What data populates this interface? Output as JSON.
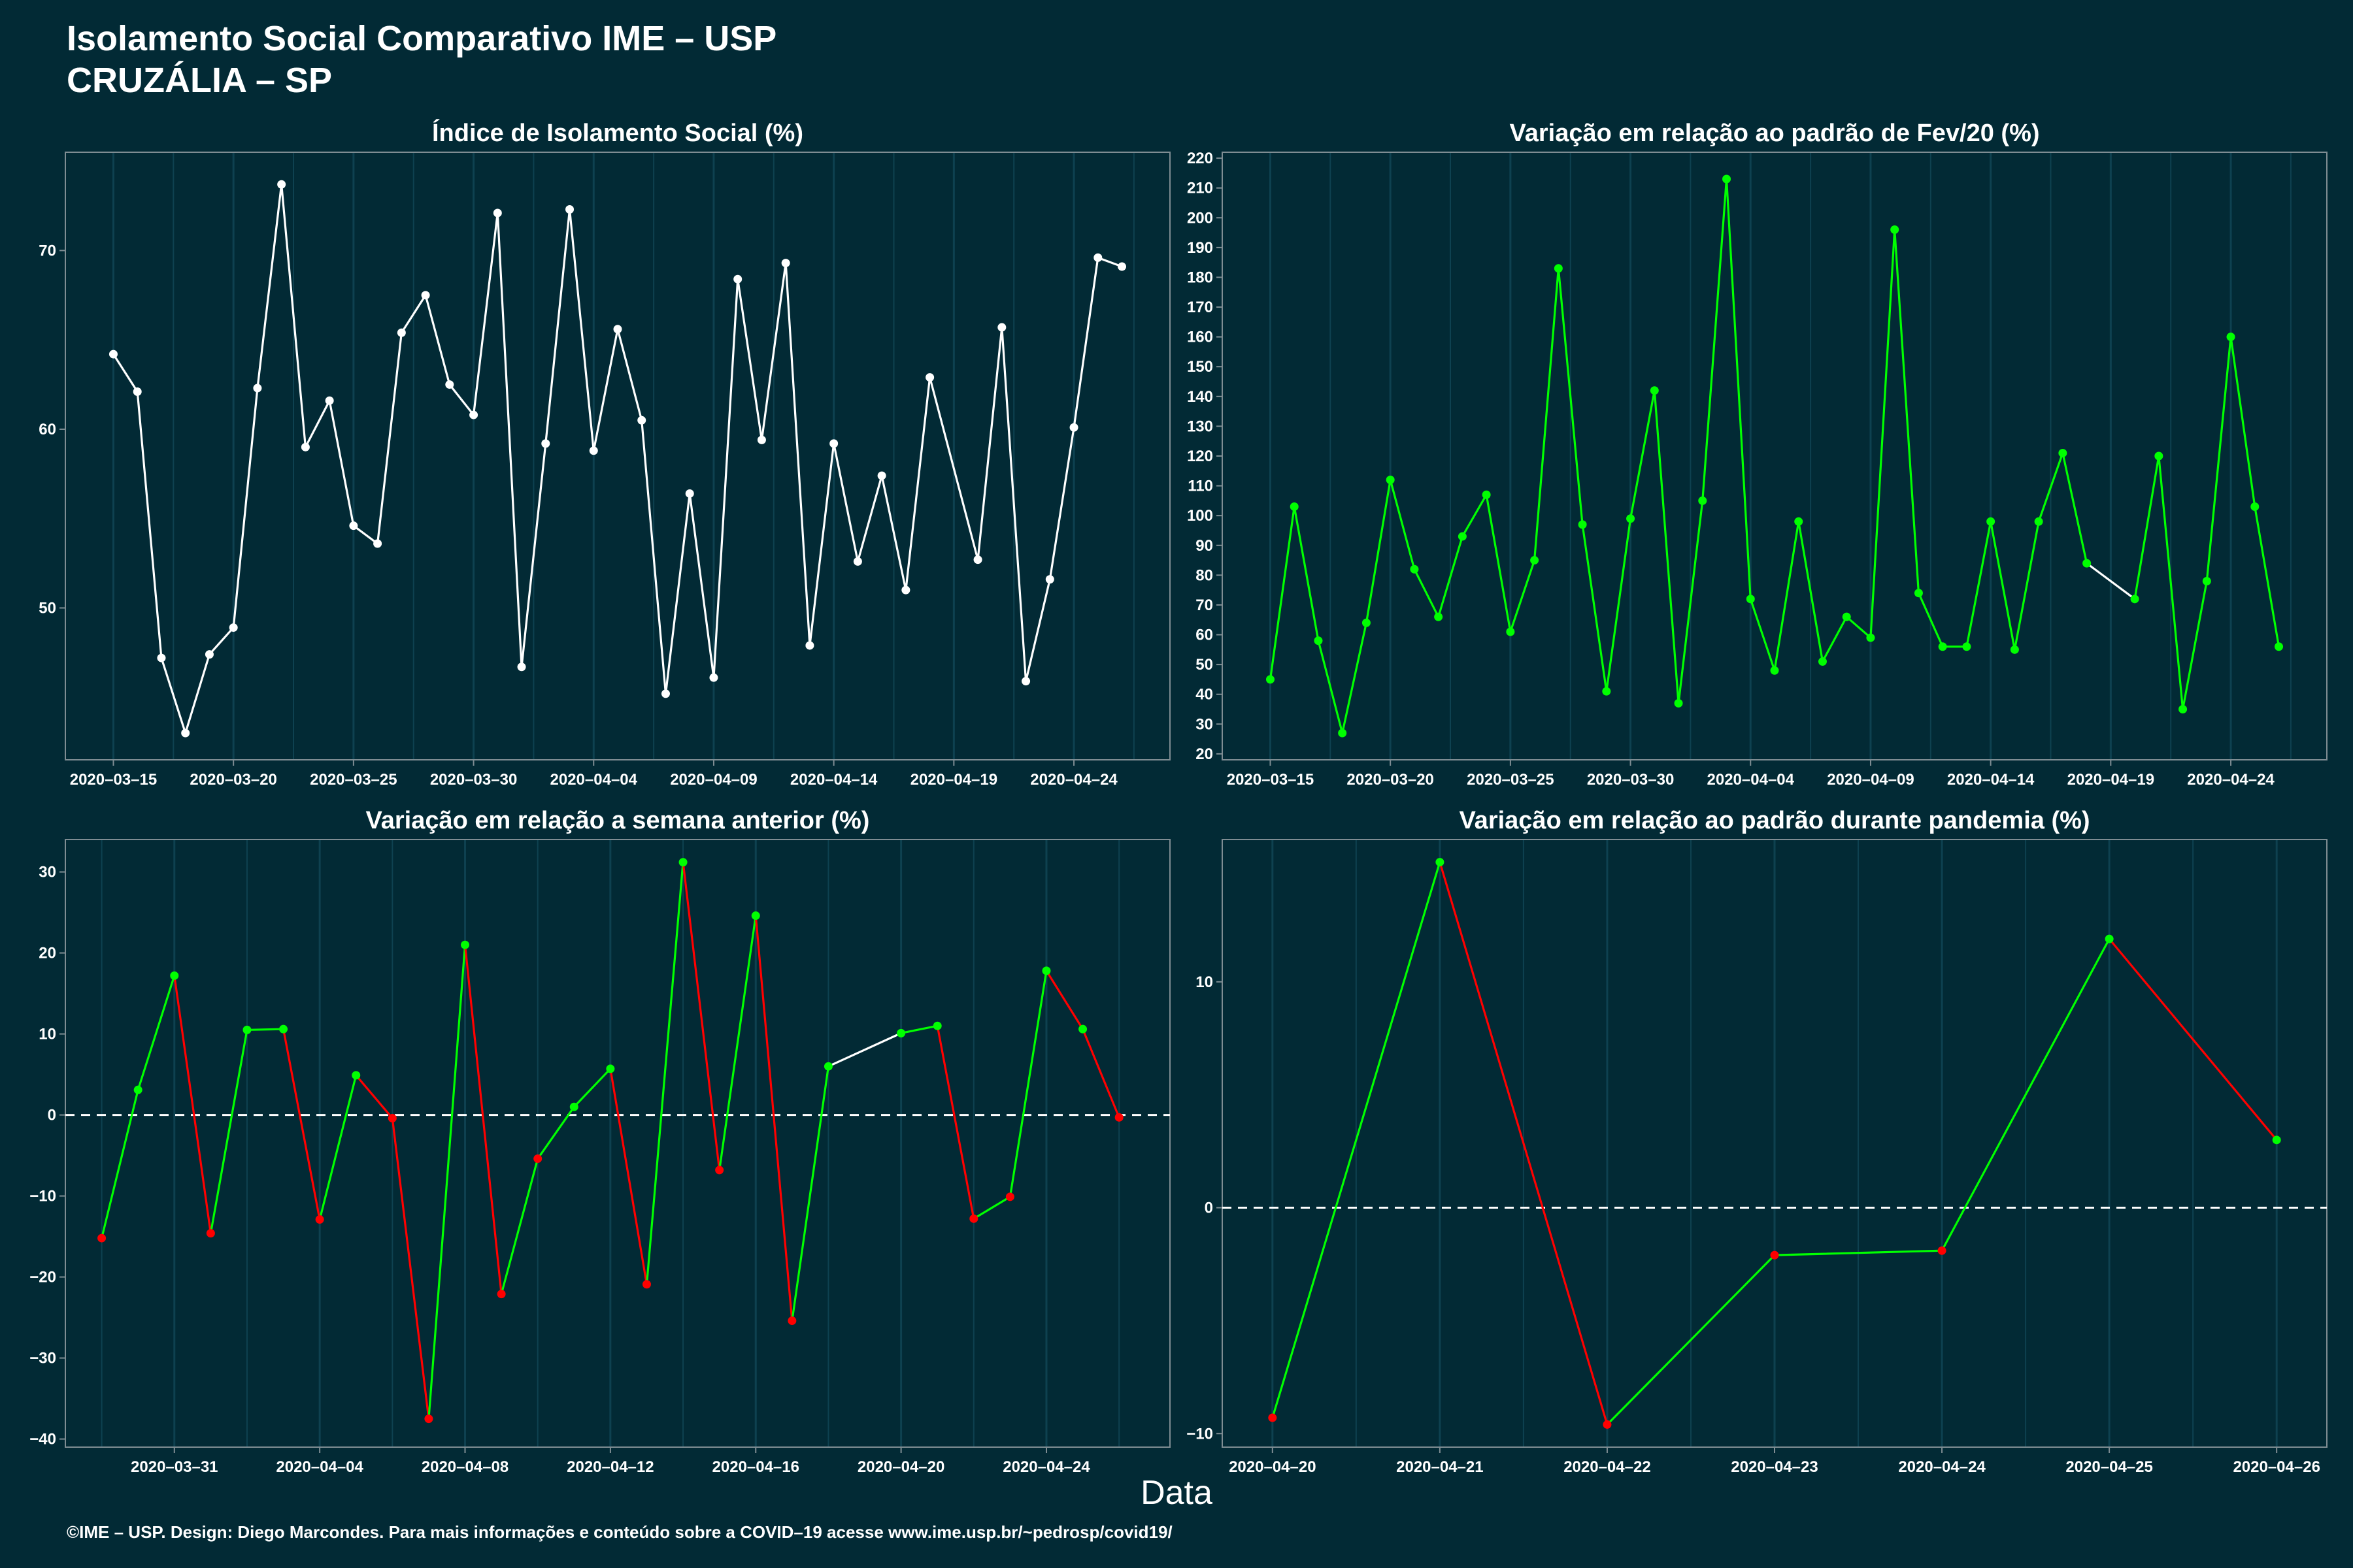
{
  "header": {
    "title": "Isolamento Social Comparativo IME – USP",
    "subtitle": "CRUZÁLIA – SP"
  },
  "x_axis_title": "Data",
  "footer": "©IME – USP. Design: Diego Marcondes. Para mais informações e conteúdo sobre a COVID–19 acesse www.ime.usp.br/~pedrosp/covid19/",
  "colors": {
    "background": "#022a35",
    "white_series": "#ffffff",
    "increase": "#00ff00",
    "decrease": "#ff0000",
    "gridline": "#0e4150"
  },
  "chart_data": [
    {
      "type": "line",
      "title": "Índice de Isolamento Social (%)",
      "xlabel": "",
      "ylabel": "",
      "x_tick_labels": [
        "2020–03–15",
        "2020–03–20",
        "2020–03–25",
        "2020–03–30",
        "2020–04–04",
        "2020–04–09",
        "2020–04–14",
        "2020–04–19",
        "2020–04–24"
      ],
      "x_ticks": [
        "2020-03-15",
        "2020-03-20",
        "2020-03-25",
        "2020-03-30",
        "2020-04-04",
        "2020-04-09",
        "2020-04-14",
        "2020-04-19",
        "2020-04-24"
      ],
      "y_ticks": [
        50,
        60,
        70
      ],
      "xlim": [
        "2020-03-13",
        "2020-04-28"
      ],
      "ylim": [
        41.5,
        75.5
      ],
      "color_mode": "white",
      "x": [
        "2020-03-15",
        "2020-03-16",
        "2020-03-17",
        "2020-03-18",
        "2020-03-19",
        "2020-03-20",
        "2020-03-21",
        "2020-03-22",
        "2020-03-23",
        "2020-03-24",
        "2020-03-25",
        "2020-03-26",
        "2020-03-27",
        "2020-03-28",
        "2020-03-29",
        "2020-03-30",
        "2020-03-31",
        "2020-04-01",
        "2020-04-02",
        "2020-04-03",
        "2020-04-04",
        "2020-04-05",
        "2020-04-06",
        "2020-04-07",
        "2020-04-08",
        "2020-04-09",
        "2020-04-10",
        "2020-04-11",
        "2020-04-12",
        "2020-04-13",
        "2020-04-14",
        "2020-04-15",
        "2020-04-16",
        "2020-04-17",
        "2020-04-18",
        "2020-04-20",
        "2020-04-21",
        "2020-04-22",
        "2020-04-23",
        "2020-04-24",
        "2020-04-25",
        "2020-04-26"
      ],
      "values": [
        64.2,
        62.1,
        47.2,
        43.0,
        47.4,
        48.9,
        62.3,
        73.7,
        59.0,
        61.6,
        54.6,
        53.6,
        65.4,
        67.5,
        62.5,
        60.8,
        72.1,
        46.7,
        59.2,
        72.3,
        58.8,
        65.6,
        60.5,
        45.2,
        56.4,
        46.1,
        68.4,
        59.4,
        69.3,
        47.9,
        59.2,
        52.6,
        57.4,
        51.0,
        62.9,
        52.7,
        65.7,
        45.9,
        51.6,
        60.1,
        69.6,
        69.1
      ]
    },
    {
      "type": "line",
      "title": "Variação em relação ao padrão de Fev/20 (%)",
      "xlabel": "",
      "ylabel": "",
      "x_tick_labels": [
        "2020–03–15",
        "2020–03–20",
        "2020–03–25",
        "2020–03–30",
        "2020–04–04",
        "2020–04–09",
        "2020–04–14",
        "2020–04–19",
        "2020–04–24"
      ],
      "x_ticks": [
        "2020-03-15",
        "2020-03-20",
        "2020-03-25",
        "2020-03-30",
        "2020-04-04",
        "2020-04-09",
        "2020-04-14",
        "2020-04-19",
        "2020-04-24"
      ],
      "y_ticks": [
        20,
        30,
        40,
        50,
        60,
        70,
        80,
        90,
        100,
        110,
        120,
        130,
        140,
        150,
        160,
        170,
        180,
        190,
        200,
        210,
        220
      ],
      "xlim": [
        "2020-03-13",
        "2020-04-28"
      ],
      "ylim": [
        18,
        222
      ],
      "color_mode": "green",
      "x": [
        "2020-03-15",
        "2020-03-16",
        "2020-03-17",
        "2020-03-18",
        "2020-03-19",
        "2020-03-20",
        "2020-03-21",
        "2020-03-22",
        "2020-03-23",
        "2020-03-24",
        "2020-03-25",
        "2020-03-26",
        "2020-03-27",
        "2020-03-28",
        "2020-03-29",
        "2020-03-30",
        "2020-03-31",
        "2020-04-01",
        "2020-04-02",
        "2020-04-03",
        "2020-04-04",
        "2020-04-05",
        "2020-04-06",
        "2020-04-07",
        "2020-04-08",
        "2020-04-09",
        "2020-04-10",
        "2020-04-11",
        "2020-04-12",
        "2020-04-13",
        "2020-04-14",
        "2020-04-15",
        "2020-04-16",
        "2020-04-17",
        "2020-04-18",
        "2020-04-20",
        "2020-04-21",
        "2020-04-22",
        "2020-04-23",
        "2020-04-24",
        "2020-04-25",
        "2020-04-26"
      ],
      "values": [
        45,
        103,
        58,
        27,
        64,
        112,
        82,
        66,
        93,
        107,
        61,
        85,
        183,
        97,
        41,
        99,
        142,
        37,
        105,
        213,
        72,
        48,
        98,
        51,
        66,
        59,
        196,
        74,
        56,
        56,
        98,
        55,
        98,
        121,
        84,
        72,
        120,
        35,
        78,
        160,
        103,
        56
      ]
    },
    {
      "type": "line",
      "title": "Variação em relação a semana anterior (%)",
      "xlabel": "",
      "ylabel": "",
      "x_tick_labels": [
        "2020–03–31",
        "2020–04–04",
        "2020–04–08",
        "2020–04–12",
        "2020–04–16",
        "2020–04–20",
        "2020–04–24"
      ],
      "x_ticks": [
        "2020-03-31",
        "2020-04-04",
        "2020-04-08",
        "2020-04-12",
        "2020-04-16",
        "2020-04-20",
        "2020-04-24"
      ],
      "y_ticks": [
        -40,
        -30,
        -20,
        -10,
        0,
        10,
        20,
        30
      ],
      "xlim": [
        "2020-03-28",
        "2020-04-27.4"
      ],
      "ylim": [
        -41,
        34
      ],
      "color_mode": "change",
      "reference_line": 0,
      "x": [
        "2020-03-29",
        "2020-03-30",
        "2020-03-31",
        "2020-04-01",
        "2020-04-02",
        "2020-04-03",
        "2020-04-04",
        "2020-04-05",
        "2020-04-06",
        "2020-04-07",
        "2020-04-08",
        "2020-04-09",
        "2020-04-10",
        "2020-04-11",
        "2020-04-12",
        "2020-04-13",
        "2020-04-14",
        "2020-04-15",
        "2020-04-16",
        "2020-04-17",
        "2020-04-18",
        "2020-04-20",
        "2020-04-21",
        "2020-04-22",
        "2020-04-23",
        "2020-04-24",
        "2020-04-25",
        "2020-04-26"
      ],
      "values": [
        -15.2,
        3.1,
        17.2,
        -14.6,
        10.5,
        10.6,
        -12.9,
        4.9,
        -0.4,
        -37.5,
        21.0,
        -22.1,
        -5.4,
        1.0,
        5.7,
        -20.9,
        31.2,
        -6.8,
        24.6,
        -25.4,
        6.0,
        10.1,
        11.0,
        -12.8,
        -10.1,
        17.8,
        10.6,
        -0.3
      ]
    },
    {
      "type": "line",
      "title": "Variação em relação ao padrão durante pandemia (%)",
      "xlabel": "",
      "ylabel": "",
      "x_tick_labels": [
        "2020–04–20",
        "2020–04–21",
        "2020–04–22",
        "2020–04–23",
        "2020–04–24",
        "2020–04–25",
        "2020–04–26"
      ],
      "x_ticks": [
        "2020-04-20",
        "2020-04-21",
        "2020-04-22",
        "2020-04-23",
        "2020-04-24",
        "2020-04-25",
        "2020-04-26"
      ],
      "y_ticks": [
        -10,
        0,
        10
      ],
      "xlim": [
        "2020-04-19.7",
        "2020-04-26.3"
      ],
      "ylim": [
        -10.6,
        16.3
      ],
      "color_mode": "change",
      "reference_line": 0,
      "x": [
        "2020-04-20",
        "2020-04-21",
        "2020-04-22",
        "2020-04-23",
        "2020-04-24",
        "2020-04-25",
        "2020-04-26"
      ],
      "values": [
        -9.3,
        15.3,
        -9.6,
        -2.1,
        -1.9,
        11.9,
        3.0
      ]
    }
  ]
}
